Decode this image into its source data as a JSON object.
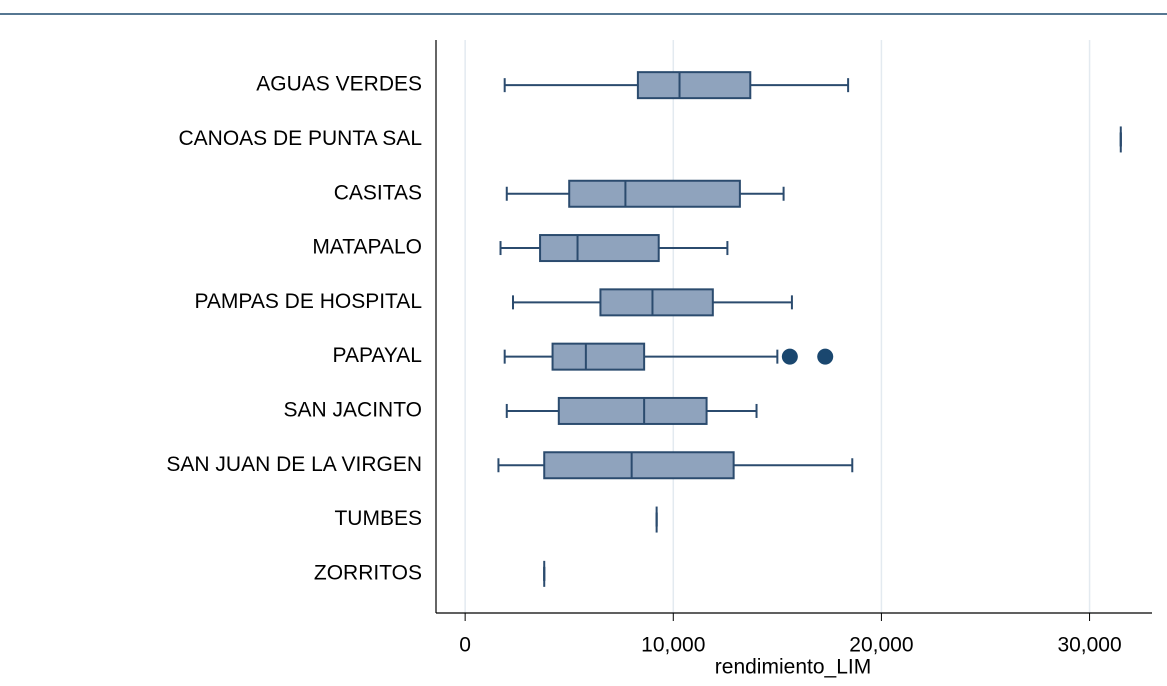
{
  "chart_data": {
    "type": "boxplot",
    "orientation": "horizontal",
    "x_label": "rendimiento_LIM",
    "categories": [
      "AGUAS VERDES",
      "CANOAS DE PUNTA SAL",
      "CASITAS",
      "MATAPALO",
      "PAMPAS DE HOSPITAL",
      "PAPAYAL",
      "SAN JACINTO",
      "SAN JUAN DE LA VIRGEN",
      "TUMBES",
      "ZORRITOS"
    ],
    "boxes": [
      {
        "min": 1900,
        "q1": 8300,
        "median": 10300,
        "q3": 13700,
        "max": 18400,
        "outliers": []
      },
      {
        "min": 31500,
        "q1": 31500,
        "median": 31500,
        "q3": 31500,
        "max": 31500,
        "outliers": []
      },
      {
        "min": 2000,
        "q1": 5000,
        "median": 7700,
        "q3": 13200,
        "max": 15300,
        "outliers": []
      },
      {
        "min": 1700,
        "q1": 3600,
        "median": 5400,
        "q3": 9300,
        "max": 12600,
        "outliers": []
      },
      {
        "min": 2300,
        "q1": 6500,
        "median": 9000,
        "q3": 11900,
        "max": 15700,
        "outliers": []
      },
      {
        "min": 1900,
        "q1": 4200,
        "median": 5800,
        "q3": 8600,
        "max": 15000,
        "outliers": [
          15600,
          17300
        ]
      },
      {
        "min": 2000,
        "q1": 4500,
        "median": 8600,
        "q3": 11600,
        "max": 14000,
        "outliers": []
      },
      {
        "min": 1600,
        "q1": 3800,
        "median": 8000,
        "q3": 12900,
        "max": 18600,
        "outliers": []
      },
      {
        "min": 9200,
        "q1": 9200,
        "median": 9200,
        "q3": 9200,
        "max": 9200,
        "outliers": []
      },
      {
        "min": 3800,
        "q1": 3800,
        "median": 3800,
        "q3": 3800,
        "max": 3800,
        "outliers": []
      }
    ],
    "box_color": "#8fa3bd",
    "line_color": "#2b4b6e",
    "outlier_color": "#1a476f",
    "xlim": [
      -1400,
      33000
    ],
    "xticks": [
      0,
      {
        "value": 10000,
        "label": "10,000"
      },
      {
        "value": 20000,
        "label": "20,000"
      },
      {
        "value": 30000,
        "label": "30,000"
      }
    ],
    "grid": true
  }
}
